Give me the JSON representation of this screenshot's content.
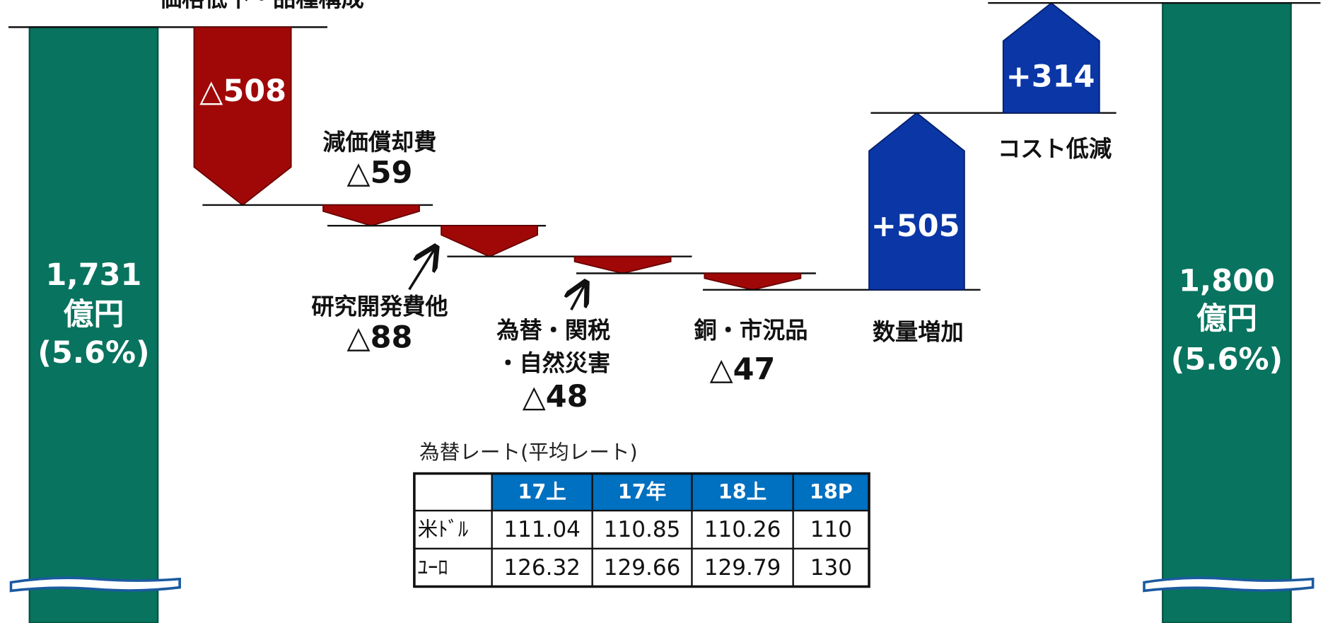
{
  "chart_data": {
    "type": "waterfall",
    "start": {
      "value": 1731,
      "label": "1,731",
      "unit": "億円",
      "ratio": {
        "value": 5.6,
        "label": "(5.6%)"
      }
    },
    "end": {
      "value": 1800,
      "label": "1,800",
      "unit": "億円",
      "ratio": {
        "value": 5.6,
        "label": "(5.6%)"
      }
    },
    "categories": [
      "価格低下・品種構成",
      "減価償却費",
      "研究開発費他",
      [
        "為替・関税",
        "・自然災害"
      ],
      "銅・市況品",
      "数量増加",
      "コスト低減"
    ],
    "values": [
      -508,
      -59,
      -88,
      -48,
      -47,
      505,
      314
    ],
    "value_labels": [
      "△508",
      "△59",
      "△88",
      "△48",
      "△47",
      "+505",
      "+314"
    ],
    "decrease_color": "#a00808",
    "increase_color": "#0a36a6",
    "total_color": "#08735e"
  },
  "table": {
    "title": "為替レート(平均レート)",
    "columns": [
      "17上",
      "17年",
      "18上",
      "18P"
    ],
    "rows": [
      {
        "label": "米ﾄﾞﾙ",
        "values": [
          111.04,
          110.85,
          110.26,
          110
        ]
      },
      {
        "label": "ﾕｰﾛ",
        "values": [
          126.32,
          129.66,
          129.79,
          130
        ]
      }
    ],
    "header_color": "#0070c0"
  }
}
